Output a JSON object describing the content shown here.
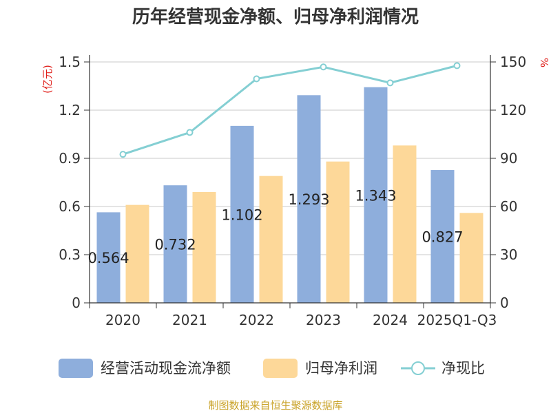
{
  "chart_data": {
    "type": "bar",
    "title": "历年经营现金净额、归母净利润情况",
    "categories": [
      "2020",
      "2021",
      "2022",
      "2023",
      "2024",
      "2025Q1-Q3"
    ],
    "series": [
      {
        "name": "经营活动现金流净额",
        "type": "bar",
        "axis": "left",
        "values": [
          0.564,
          0.732,
          1.102,
          1.293,
          1.343,
          0.827
        ],
        "data_labels": [
          "0.564",
          "0.732",
          "1.102",
          "1.293",
          "1.343",
          "0.827"
        ]
      },
      {
        "name": "归母净利润",
        "type": "bar",
        "axis": "left",
        "values": [
          0.61,
          0.69,
          0.79,
          0.88,
          0.98,
          0.56
        ]
      },
      {
        "name": "净现比",
        "type": "line",
        "axis": "right",
        "values": [
          92.5,
          106.1,
          139.5,
          146.9,
          137.0,
          147.7
        ]
      }
    ],
    "left_axis": {
      "label": "(亿元)",
      "ylim": [
        0,
        1.5
      ],
      "ticks": [
        "0",
        "0.3",
        "0.6",
        "0.9",
        "1.2",
        "1.5"
      ]
    },
    "right_axis": {
      "label": "%",
      "ylim": [
        0,
        150
      ],
      "ticks": [
        "0",
        "30",
        "60",
        "90",
        "120",
        "150"
      ]
    },
    "grid": true,
    "legend_position": "bottom",
    "colors": {
      "bar1": "#8eaedc",
      "bar2": "#fdd899",
      "line": "#84cfd3"
    }
  },
  "footer": {
    "source": "制图数据来自恒生聚源数据库"
  }
}
